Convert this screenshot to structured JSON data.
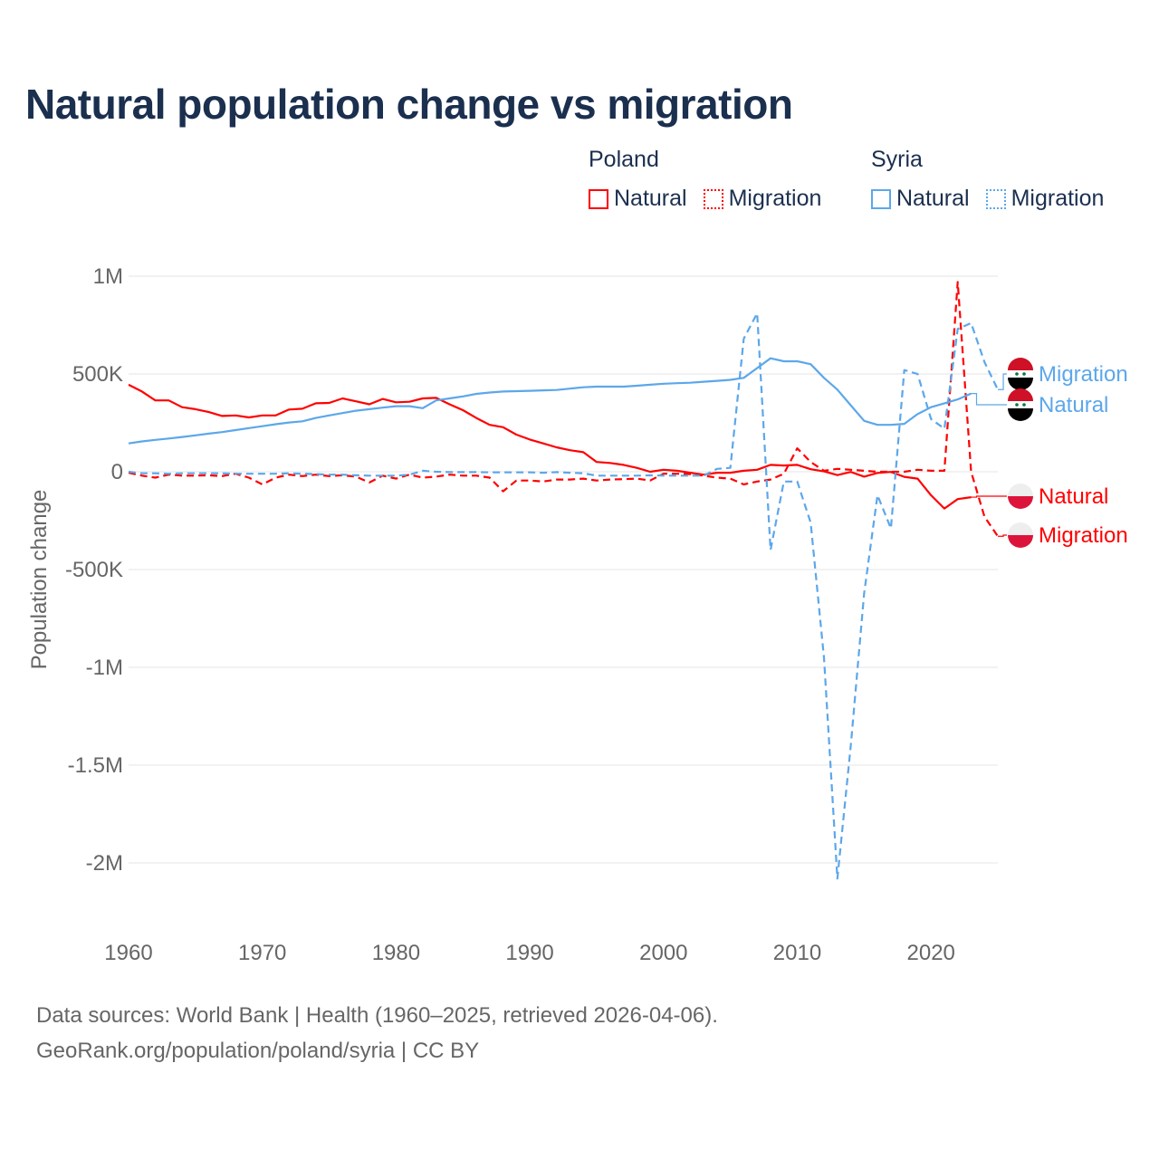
{
  "chart_data": {
    "type": "line",
    "title": "Natural population change vs migration",
    "xlabel": "",
    "ylabel": "Population change",
    "xlim": [
      1960,
      2025
    ],
    "ylim": [
      -2200000,
      1050000
    ],
    "x_ticks": [
      1960,
      1970,
      1980,
      1990,
      2000,
      2010,
      2020
    ],
    "x_tick_labels": [
      "1960",
      "1970",
      "1980",
      "1990",
      "2000",
      "2010",
      "2020"
    ],
    "y_ticks": [
      1000000,
      500000,
      0,
      -500000,
      -1000000,
      -1500000,
      -2000000
    ],
    "y_tick_labels": [
      "1M",
      "500K",
      "0",
      "-500K",
      "-1M",
      "-1.5M",
      "-2M"
    ],
    "grid": true,
    "legend_placement": "top-right",
    "legend_groups": [
      "Poland",
      "Syria"
    ],
    "series": [
      {
        "name": "Natural",
        "country": "Poland",
        "color": "#ff0000",
        "dash": false,
        "start_year": 1960,
        "values": [
          445000,
          410000,
          365000,
          365000,
          330000,
          320000,
          305000,
          285000,
          288000,
          278000,
          288000,
          288000,
          318000,
          322000,
          350000,
          352000,
          375000,
          360000,
          345000,
          372000,
          355000,
          358000,
          375000,
          378000,
          345000,
          315000,
          275000,
          240000,
          228000,
          190000,
          165000,
          145000,
          125000,
          110000,
          100000,
          50000,
          45000,
          35000,
          20000,
          0,
          10000,
          5000,
          -5000,
          -15000,
          -5000,
          -5000,
          5000,
          10000,
          35000,
          32000,
          35000,
          13000,
          2000,
          -17000,
          -1000,
          -25000,
          -6000,
          -1000,
          -26000,
          -35000,
          -120000,
          -188000,
          -140000,
          -130000
        ]
      },
      {
        "name": "Migration",
        "country": "Poland",
        "color": "#ff0000",
        "dash": true,
        "start_year": 1960,
        "values": [
          -5000,
          -20000,
          -30000,
          -15000,
          -20000,
          -20000,
          -18000,
          -22000,
          -10000,
          -30000,
          -65000,
          -30000,
          -15000,
          -22000,
          -15000,
          -22000,
          -18000,
          -25000,
          -55000,
          -20000,
          -35000,
          -15000,
          -30000,
          -25000,
          -15000,
          -20000,
          -20000,
          -30000,
          -100000,
          -45000,
          -45000,
          -50000,
          -40000,
          -40000,
          -35000,
          -45000,
          -40000,
          -38000,
          -35000,
          -45000,
          -10000,
          -10000,
          -12000,
          -20000,
          -30000,
          -35000,
          -65000,
          -50000,
          -40000,
          -10000,
          120000,
          50000,
          5000,
          15000,
          10000,
          5000,
          0,
          0,
          0,
          10000,
          5000,
          5000,
          970000,
          0,
          -230000,
          -330000
        ]
      },
      {
        "name": "Natural",
        "country": "Syria",
        "color": "#5ca7ea",
        "dash": false,
        "start_year": 1960,
        "values": [
          145000,
          155000,
          163000,
          170000,
          178000,
          186000,
          195000,
          203000,
          213000,
          223000,
          233000,
          243000,
          252000,
          258000,
          275000,
          288000,
          300000,
          312000,
          320000,
          328000,
          335000,
          335000,
          325000,
          365000,
          375000,
          385000,
          398000,
          405000,
          410000,
          412000,
          414000,
          416000,
          418000,
          425000,
          432000,
          435000,
          435000,
          435000,
          440000,
          445000,
          450000,
          453000,
          455000,
          460000,
          465000,
          470000,
          480000,
          530000,
          580000,
          565000,
          565000,
          550000,
          480000,
          420000,
          340000,
          260000,
          240000,
          240000,
          245000,
          295000,
          330000,
          350000,
          370000,
          400000
        ]
      },
      {
        "name": "Migration",
        "country": "Syria",
        "color": "#5ca7ea",
        "dash": true,
        "start_year": 1960,
        "values": [
          0,
          -8000,
          -8000,
          -10000,
          -8000,
          -8000,
          -8000,
          -8000,
          -10000,
          -10000,
          -10000,
          -10000,
          -8000,
          -10000,
          -12000,
          -15000,
          -15000,
          -18000,
          -20000,
          -20000,
          -20000,
          -15000,
          5000,
          0,
          -2000,
          -2000,
          -2000,
          -3000,
          -3000,
          -3000,
          -3000,
          -5000,
          -2000,
          -5000,
          -8000,
          -20000,
          -20000,
          -20000,
          -20000,
          -18000,
          -20000,
          -20000,
          -20000,
          -20000,
          15000,
          20000,
          680000,
          810000,
          -400000,
          -50000,
          -50000,
          -260000,
          -950000,
          -2080000,
          -1400000,
          -620000,
          -120000,
          -290000,
          520000,
          500000,
          270000,
          220000,
          730000,
          760000,
          560000,
          420000
        ]
      }
    ],
    "end_labels": [
      {
        "text": "Migration",
        "country": "Syria",
        "color": "#5ca7ea"
      },
      {
        "text": "Natural",
        "country": "Syria",
        "color": "#5ca7ea"
      },
      {
        "text": "Natural",
        "country": "Poland",
        "color": "#ff0000"
      },
      {
        "text": "Migration",
        "country": "Poland",
        "color": "#ff0000"
      }
    ]
  },
  "legend": {
    "poland": "Poland",
    "syria": "Syria",
    "natural": "Natural",
    "migration": "Migration"
  },
  "footer": {
    "line1": "Data sources: World Bank | Health (1960–2025, retrieved 2026-04-06).",
    "line2": "GeoRank.org/population/poland/syria | CC BY"
  }
}
